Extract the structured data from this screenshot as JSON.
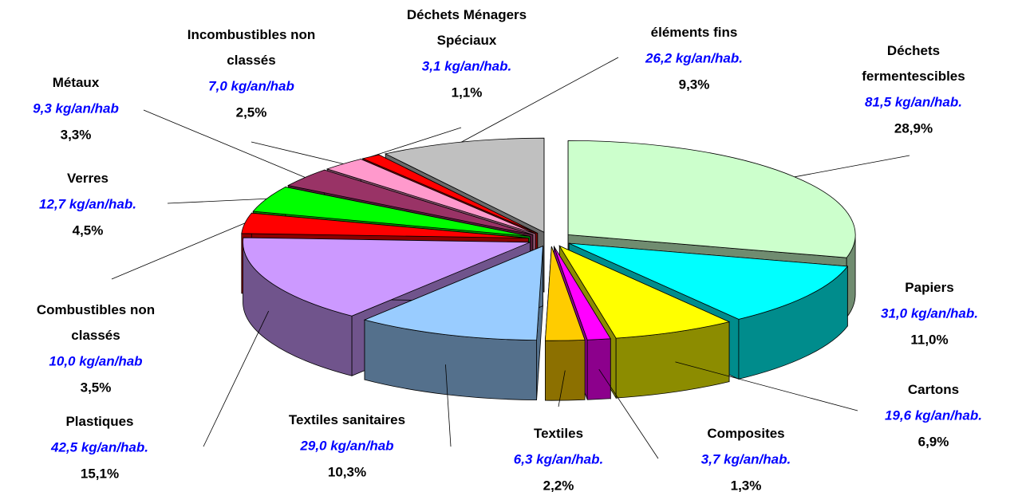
{
  "chart_data": {
    "type": "pie3d",
    "categories": [
      "Déchets\nfermentescibles",
      "Papiers",
      "Cartons",
      "Composites",
      "Textiles",
      "Textiles sanitaires",
      "Plastiques",
      "Combustibles non\nclassés",
      "Verres",
      "Métaux",
      "Incombustibles non\nclassés",
      "Déchets Ménagers\nSpéciaux",
      "éléments fins"
    ],
    "amount_labels": [
      "81,5 kg/an/hab.",
      "31,0 kg/an/hab.",
      "19,6 kg/an/hab.",
      "3,7 kg/an/hab.",
      "6,3 kg/an/hab.",
      "29,0 kg/an/hab",
      "42,5 kg/an/hab.",
      "10,0 kg/an/hab",
      "12,7 kg/an/hab.",
      "9,3 kg/an/hab",
      "7,0 kg/an/hab",
      "3,1 kg/an/hab.",
      "26,2 kg/an/hab."
    ],
    "values": [
      28.9,
      11.0,
      6.9,
      1.3,
      2.2,
      10.3,
      15.1,
      3.5,
      4.5,
      3.3,
      2.5,
      1.1,
      9.3
    ],
    "value_labels": [
      "28,9%",
      "11,0%",
      "6,9%",
      "1,3%",
      "2,2%",
      "10,3%",
      "15,1%",
      "3,5%",
      "4,5%",
      "3,3%",
      "2,5%",
      "1,1%",
      "9,3%"
    ],
    "colors": [
      "#ccffcc",
      "#00ffff",
      "#ffff00",
      "#ff00ff",
      "#ffcc00",
      "#99ccff",
      "#cc99ff",
      "#ff0000",
      "#00ff00",
      "#993366",
      "#ff99cc",
      "#ff0000",
      "#c0c0c0"
    ]
  }
}
